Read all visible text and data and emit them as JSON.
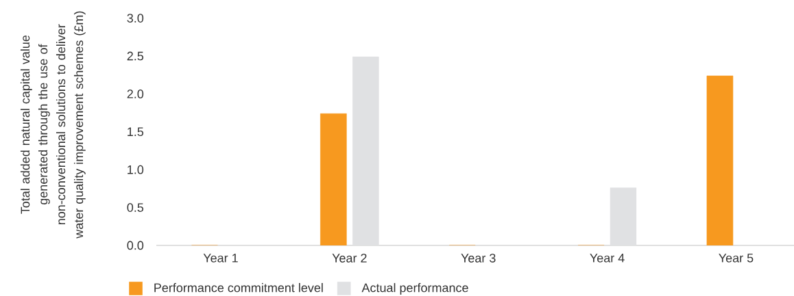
{
  "chart_data": {
    "type": "bar",
    "ylabel": "Total added natural capital value generated through the use of non-conventional solutions to deliver water quality improvement schemes (£m)",
    "categories": [
      "Year 1",
      "Year 2",
      "Year 3",
      "Year 4",
      "Year 5"
    ],
    "series": [
      {
        "name": "Performance commitment level",
        "color": "#f7991f",
        "values": [
          0,
          1.74,
          0,
          0,
          2.24
        ]
      },
      {
        "name": "Actual performance",
        "color": "#e0e1e3",
        "values": [
          null,
          2.49,
          null,
          0.76,
          null
        ]
      }
    ],
    "ylim": [
      0,
      3.0
    ],
    "yticks": [
      {
        "value": 0,
        "label": "0.0"
      },
      0.5,
      {
        "value": 1,
        "label": "1.0"
      },
      1.5,
      {
        "value": 2,
        "label": "2.0"
      },
      2.5,
      {
        "value": 3,
        "label": "3.0"
      }
    ],
    "legend": "bottom"
  }
}
